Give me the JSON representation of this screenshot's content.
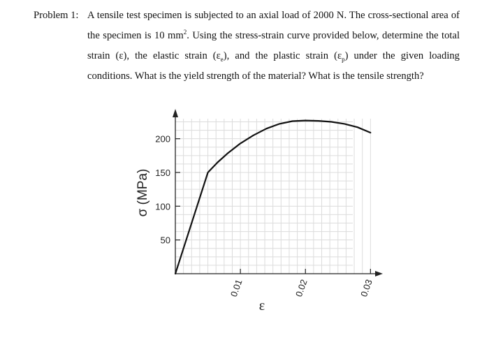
{
  "problem": {
    "label": "Problem 1:",
    "text_1": "A tensile test specimen is subjected to an axial load of 2000 N. The cross-sectional area of the specimen is 10 mm",
    "superscript": "2",
    "text_2": ". Using the stress-strain curve provided below, determine the total strain (ε), the elastic strain (ε",
    "sub_e": "e",
    "text_3": "), and the plastic strain (ε",
    "sub_p": "p",
    "text_4": ") under the given loading conditions. What is the yield strength of the material? What is the tensile strength?"
  },
  "chart_data": {
    "type": "line",
    "title": "",
    "xlabel": "ε",
    "ylabel": "σ (MPa)",
    "xlim": [
      0,
      0.0305
    ],
    "ylim": [
      0,
      240
    ],
    "x_ticks": [
      0.01,
      0.02,
      0.03
    ],
    "x_tick_labels": [
      "0.01",
      "0.02",
      "0.03"
    ],
    "y_ticks": [
      50,
      100,
      150,
      200
    ],
    "y_tick_labels": [
      "50",
      "100",
      "150",
      "200"
    ],
    "grid": true,
    "series": [
      {
        "x": [
          0,
          0.005,
          0.0065,
          0.008,
          0.01,
          0.012,
          0.014,
          0.016,
          0.018,
          0.02,
          0.022,
          0.024,
          0.026,
          0.028,
          0.03
        ],
        "y": [
          0,
          150,
          165,
          178,
          193,
          205,
          215,
          222,
          226,
          227,
          226.5,
          225,
          222,
          217,
          209
        ]
      }
    ]
  }
}
